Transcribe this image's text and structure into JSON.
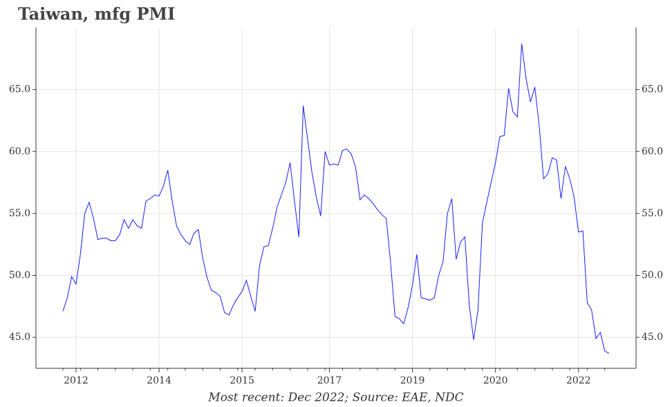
{
  "chart_data": {
    "type": "line",
    "title": "Taiwan, mfg PMI",
    "footnote": "Most recent: Dec 2022; Source: EAE, NDC",
    "color": "#1a1aff",
    "categories": [
      null,
      null,
      null,
      "2012",
      null,
      null,
      null,
      null,
      null,
      null,
      null,
      null,
      null,
      null,
      null,
      null,
      null,
      null,
      null,
      null,
      null,
      null,
      "2014",
      null,
      null,
      null,
      null,
      null,
      null,
      null,
      null,
      null,
      null,
      null,
      null,
      null,
      null,
      null,
      null,
      null,
      null,
      "2015",
      null,
      null,
      null,
      null,
      null,
      null,
      null,
      null,
      null,
      null,
      null,
      null,
      null,
      null,
      null,
      null,
      null,
      null,
      null,
      "2017",
      null,
      null,
      null,
      null,
      null,
      null,
      null,
      null,
      null,
      null,
      null,
      null,
      null,
      null,
      null,
      null,
      null,
      null,
      "2019",
      null,
      null,
      null,
      null,
      null,
      null,
      null,
      null,
      null,
      null,
      null,
      null,
      null,
      null,
      null,
      null,
      null,
      null,
      "2020",
      null,
      null,
      null,
      null,
      null,
      null,
      null,
      null,
      null,
      null,
      null,
      null,
      null,
      null,
      null,
      null,
      null,
      null,
      "2022",
      null,
      null,
      null,
      null,
      null,
      null,
      null
    ],
    "values": [
      47.1,
      48.2,
      49.9,
      49.3,
      51.7,
      55.0,
      55.9,
      54.6,
      52.9,
      53.0,
      53.0,
      52.8,
      52.8,
      53.3,
      54.5,
      53.8,
      54.5,
      54.0,
      53.8,
      56.0,
      56.2,
      56.5,
      56.4,
      57.2,
      58.5,
      56.0,
      54.0,
      53.3,
      52.8,
      52.5,
      53.4,
      53.7,
      51.4,
      49.8,
      48.8,
      48.6,
      48.3,
      47.0,
      46.8,
      47.6,
      48.2,
      48.7,
      49.6,
      48.3,
      47.1,
      50.8,
      52.3,
      52.4,
      53.8,
      55.5,
      56.5,
      57.5,
      59.1,
      56.0,
      53.1,
      63.7,
      61.0,
      58.3,
      56.3,
      54.8,
      60.0,
      58.9,
      59.0,
      58.9,
      60.1,
      60.2,
      59.8,
      58.7,
      56.1,
      56.5,
      56.2,
      55.8,
      55.3,
      54.9,
      54.6,
      51.0,
      46.7,
      46.5,
      46.1,
      47.4,
      49.2,
      51.7,
      48.2,
      48.1,
      48.0,
      48.2,
      50.0,
      51.1,
      55.0,
      56.2,
      51.3,
      52.7,
      53.1,
      47.6,
      44.8,
      47.2,
      54.2,
      55.9,
      57.5,
      59.1,
      61.2,
      61.3,
      65.1,
      63.2,
      62.8,
      68.7,
      65.9,
      64.0,
      65.2,
      62.1,
      57.8,
      58.2,
      59.5,
      59.3,
      56.2,
      58.8,
      57.8,
      56.3,
      53.5,
      53.6,
      47.8,
      47.2,
      44.9,
      45.4,
      43.9,
      43.7
    ],
    "ylim": [
      42.5,
      70
    ],
    "yticks": [
      {
        "value": 45,
        "label": "45.0"
      },
      {
        "value": 50,
        "label": "50.0"
      },
      {
        "value": 55,
        "label": "55.0"
      },
      {
        "value": 60,
        "label": "60.0"
      },
      {
        "value": 65,
        "label": "65.0"
      }
    ],
    "grid": true
  }
}
